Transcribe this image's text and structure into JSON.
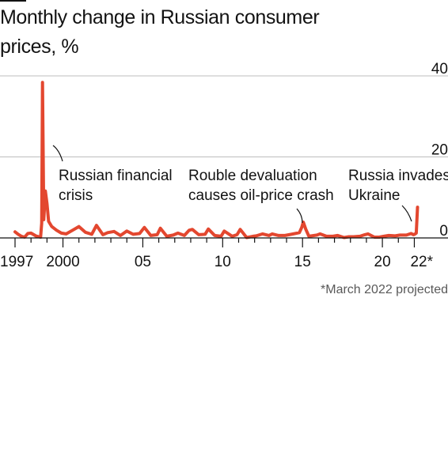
{
  "chart_data": {
    "type": "line",
    "title": "Monthly change in Russian consumer prices, %",
    "xlabel": "",
    "ylabel": "",
    "x_tick_labels": [
      "1997",
      "2000",
      "05",
      "10",
      "15",
      "20",
      "22*"
    ],
    "x_tick_years": [
      1997,
      2000,
      2005,
      2010,
      2015,
      2020,
      2022
    ],
    "y_ticks": [
      0,
      20,
      40
    ],
    "xlim": [
      1997,
      2022.25
    ],
    "ylim": [
      0,
      40
    ],
    "grid": "horizontal",
    "series": [
      {
        "color": "#e3472f",
        "points": [
          [
            1997.0,
            1.5
          ],
          [
            1997.2,
            0.9
          ],
          [
            1997.4,
            0.4
          ],
          [
            1997.6,
            0.2
          ],
          [
            1997.8,
            1.1
          ],
          [
            1998.0,
            1.2
          ],
          [
            1998.3,
            0.5
          ],
          [
            1998.5,
            0.3
          ],
          [
            1998.6,
            0.2
          ],
          [
            1998.67,
            3.7
          ],
          [
            1998.72,
            38.4
          ],
          [
            1998.8,
            4.5
          ],
          [
            1998.9,
            11.6
          ],
          [
            1999.0,
            8.4
          ],
          [
            1999.1,
            4.1
          ],
          [
            1999.3,
            2.8
          ],
          [
            1999.6,
            1.9
          ],
          [
            1999.9,
            1.2
          ],
          [
            2000.2,
            1.0
          ],
          [
            2000.6,
            1.9
          ],
          [
            2001.0,
            2.8
          ],
          [
            2001.4,
            1.4
          ],
          [
            2001.8,
            0.9
          ],
          [
            2002.1,
            3.1
          ],
          [
            2002.5,
            0.8
          ],
          [
            2002.8,
            1.3
          ],
          [
            2003.2,
            1.6
          ],
          [
            2003.6,
            0.6
          ],
          [
            2004.0,
            1.7
          ],
          [
            2004.4,
            0.9
          ],
          [
            2004.8,
            1.1
          ],
          [
            2005.1,
            2.6
          ],
          [
            2005.5,
            0.6
          ],
          [
            2005.9,
            0.8
          ],
          [
            2006.1,
            2.4
          ],
          [
            2006.5,
            0.4
          ],
          [
            2006.9,
            0.7
          ],
          [
            2007.2,
            1.2
          ],
          [
            2007.6,
            0.6
          ],
          [
            2007.9,
            1.9
          ],
          [
            2008.1,
            2.1
          ],
          [
            2008.5,
            0.8
          ],
          [
            2008.9,
            0.9
          ],
          [
            2009.1,
            2.2
          ],
          [
            2009.5,
            0.6
          ],
          [
            2009.9,
            0.4
          ],
          [
            2010.1,
            1.7
          ],
          [
            2010.6,
            0.4
          ],
          [
            2010.9,
            0.8
          ],
          [
            2011.1,
            2.1
          ],
          [
            2011.5,
            0.1
          ],
          [
            2011.9,
            0.4
          ],
          [
            2012.1,
            0.5
          ],
          [
            2012.5,
            1.0
          ],
          [
            2012.9,
            0.6
          ],
          [
            2013.1,
            1.0
          ],
          [
            2013.5,
            0.6
          ],
          [
            2013.9,
            0.6
          ],
          [
            2014.3,
            0.9
          ],
          [
            2014.8,
            1.3
          ],
          [
            2014.95,
            2.6
          ],
          [
            2015.05,
            3.9
          ],
          [
            2015.2,
            2.2
          ],
          [
            2015.4,
            0.4
          ],
          [
            2015.9,
            0.7
          ],
          [
            2016.1,
            1.0
          ],
          [
            2016.5,
            0.4
          ],
          [
            2016.9,
            0.4
          ],
          [
            2017.2,
            0.6
          ],
          [
            2017.6,
            0.1
          ],
          [
            2017.9,
            0.3
          ],
          [
            2018.2,
            0.3
          ],
          [
            2018.6,
            0.4
          ],
          [
            2018.9,
            0.8
          ],
          [
            2019.1,
            1.0
          ],
          [
            2019.5,
            0.2
          ],
          [
            2019.8,
            0.2
          ],
          [
            2020.1,
            0.4
          ],
          [
            2020.4,
            0.6
          ],
          [
            2020.8,
            0.5
          ],
          [
            2021.1,
            0.7
          ],
          [
            2021.5,
            0.7
          ],
          [
            2021.8,
            1.1
          ],
          [
            2021.95,
            0.8
          ],
          [
            2022.05,
            1.0
          ],
          [
            2022.12,
            1.2
          ],
          [
            2022.2,
            7.6
          ]
        ]
      }
    ],
    "annotations": [
      {
        "lines": [
          "Russian financial",
          "crisis"
        ],
        "x": 1998.72,
        "y": 38.4
      },
      {
        "lines": [
          "Rouble devaluation",
          "causes oil-price crash"
        ],
        "x": 2015.05,
        "y": 3.9
      },
      {
        "lines": [
          "Russia invades",
          "Ukraine"
        ],
        "x": 2022.2,
        "y": 7.6
      }
    ],
    "footnote": "*March 2022 projected"
  },
  "colors": {
    "line": "#e3472f",
    "grid": "#bdbdbd",
    "axis": "#121212",
    "footnote": "#595959"
  }
}
